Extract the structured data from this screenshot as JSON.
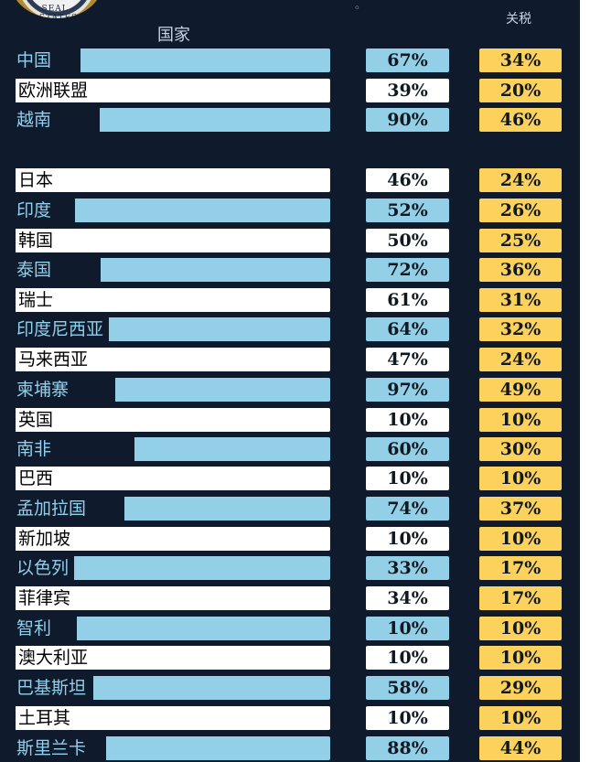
{
  "header": {
    "country_label": "国家",
    "tariff_label": "关税",
    "seal_text": "SEAL · STATES",
    "top_dot": "。"
  },
  "rows": [
    {
      "country": "中国",
      "charged": "67%",
      "tariff": "34%"
    },
    {
      "country": "欧洲联盟",
      "charged": "39%",
      "tariff": "20%"
    },
    {
      "country": "越南",
      "charged": "90%",
      "tariff": "46%"
    },
    {
      "country": "日本",
      "charged": "46%",
      "tariff": "24%"
    },
    {
      "country": "印度",
      "charged": "52%",
      "tariff": "26%"
    },
    {
      "country": "韩国",
      "charged": "50%",
      "tariff": "25%"
    },
    {
      "country": "泰国",
      "charged": "72%",
      "tariff": "36%"
    },
    {
      "country": "瑞士",
      "charged": "61%",
      "tariff": "31%"
    },
    {
      "country": "印度尼西亚",
      "charged": "64%",
      "tariff": "32%"
    },
    {
      "country": "马来西亚",
      "charged": "47%",
      "tariff": "24%"
    },
    {
      "country": "柬埔寨",
      "charged": "97%",
      "tariff": "49%"
    },
    {
      "country": "英国",
      "charged": "10%",
      "tariff": "10%"
    },
    {
      "country": "南非",
      "charged": "60%",
      "tariff": "30%"
    },
    {
      "country": "巴西",
      "charged": "10%",
      "tariff": "10%"
    },
    {
      "country": "孟加拉国",
      "charged": "74%",
      "tariff": "37%"
    },
    {
      "country": "新加坡",
      "charged": "10%",
      "tariff": "10%"
    },
    {
      "country": "以色列",
      "charged": "33%",
      "tariff": "17%"
    },
    {
      "country": "菲律宾",
      "charged": "34%",
      "tariff": "17%"
    },
    {
      "country": "智利",
      "charged": "10%",
      "tariff": "10%"
    },
    {
      "country": "澳大利亚",
      "charged": "10%",
      "tariff": "10%"
    },
    {
      "country": "巴基斯坦",
      "charged": "58%",
      "tariff": "29%"
    },
    {
      "country": "土耳其",
      "charged": "10%",
      "tariff": "10%"
    },
    {
      "country": "斯里兰卡",
      "charged": "88%",
      "tariff": "44%"
    }
  ],
  "colors": {
    "background": "#0f1a2c",
    "blue_row": "#93d0e8",
    "white_row": "#ffffff",
    "tariff_cell": "#fcd25c",
    "blue_label_text": "#8fd0ec"
  }
}
